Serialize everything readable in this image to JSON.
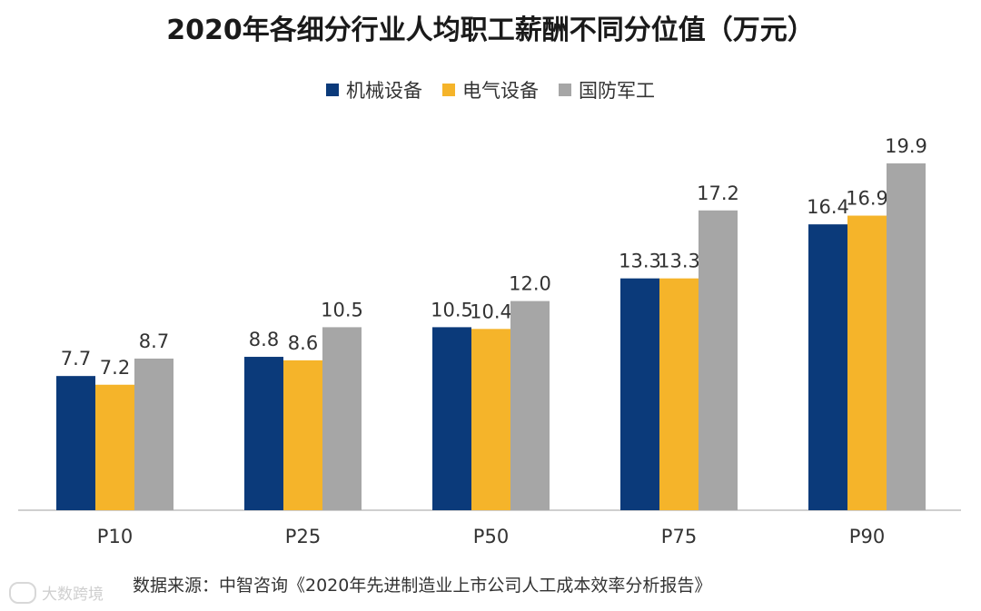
{
  "chart_data": {
    "type": "bar",
    "title": "2020年各细分行业人均职工薪酬不同分位值（万元）",
    "categories": [
      "P10",
      "P25",
      "P50",
      "P75",
      "P90"
    ],
    "series": [
      {
        "name": "机械设备",
        "color": "#0b3a7a",
        "values": [
          7.7,
          8.8,
          10.5,
          13.3,
          16.4
        ]
      },
      {
        "name": "电气设备",
        "color": "#f5b42a",
        "values": [
          7.2,
          8.6,
          10.4,
          13.3,
          16.9
        ]
      },
      {
        "name": "国防军工",
        "color": "#a6a6a6",
        "values": [
          8.7,
          10.5,
          12.0,
          17.2,
          19.9
        ]
      }
    ],
    "ylim": [
      0,
      22
    ],
    "xlabel": "",
    "ylabel": "",
    "grid": false,
    "legend_position": "top"
  },
  "source": "数据来源：中智咨询《2020年先进制造业上市公司人工成本效率分析报告》",
  "watermark": "大数跨境"
}
